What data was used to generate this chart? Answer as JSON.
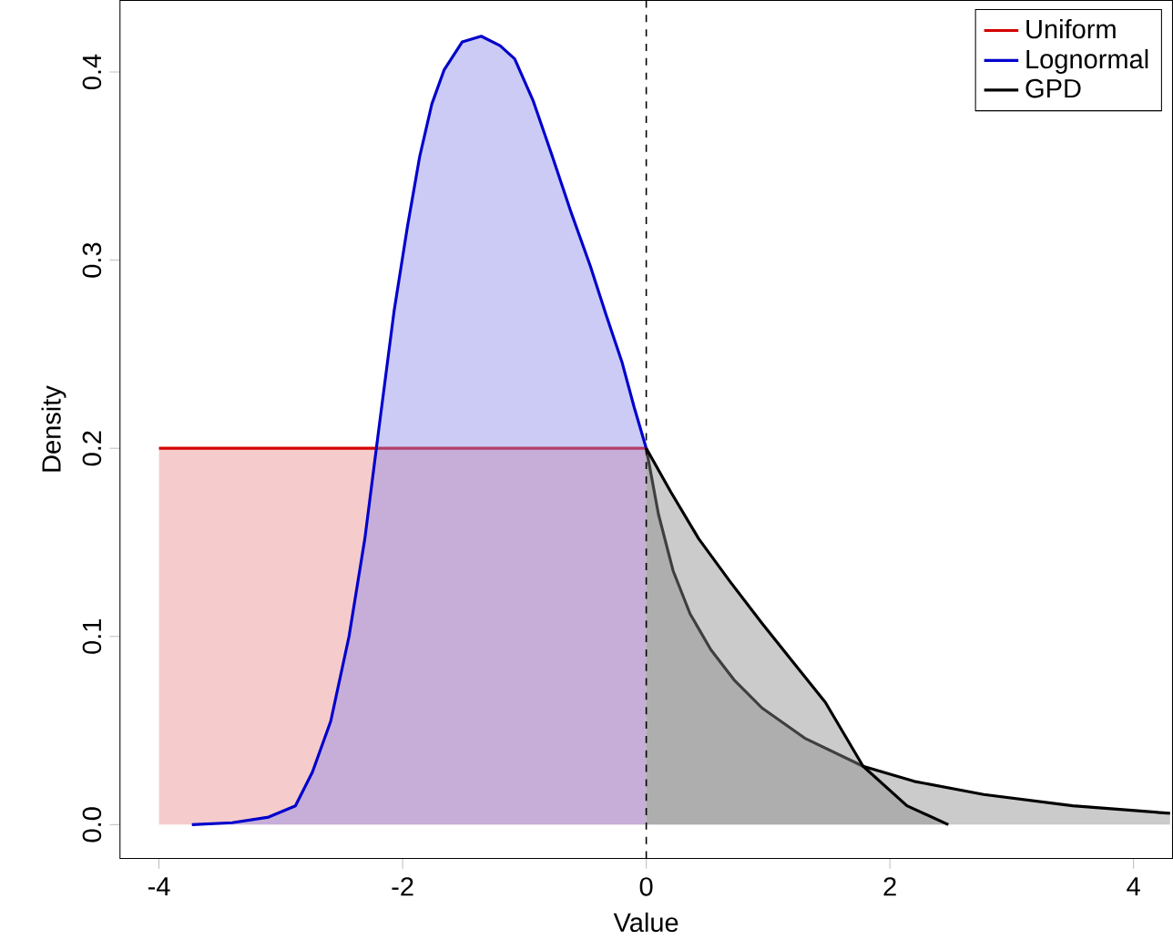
{
  "chart_data": {
    "type": "area",
    "xlabel": "Value",
    "ylabel": "Density",
    "xlim": [
      -4.32,
      4.32
    ],
    "ylim": [
      -0.018,
      0.438
    ],
    "xticks": [
      -4,
      -2,
      0,
      2,
      4
    ],
    "yticks": [
      {
        "value": 0,
        "label": "0.0"
      },
      {
        "value": 0.1,
        "label": "0.1"
      },
      {
        "value": 0.2,
        "label": "0.2"
      },
      {
        "value": 0.3,
        "label": "0.3"
      },
      {
        "value": 0.4,
        "label": "0.4"
      }
    ],
    "grid": false,
    "legend": "top right",
    "ref_lines": [
      {
        "axis": "x",
        "value": 0,
        "label": null,
        "color": "#000000",
        "line_style": "dashed"
      }
    ],
    "series": [
      {
        "name": "Uniform",
        "color": "#d40000",
        "x": [
          -4,
          0
        ],
        "values": [
          0.2,
          0.2
        ]
      },
      {
        "name": "Lognormal",
        "color": "#0000cc",
        "x": [
          -3.73,
          -3.4,
          -3.1,
          -2.88,
          -2.74,
          -2.59,
          -2.44,
          -2.31,
          -2.19,
          -2.07,
          -1.96,
          -1.86,
          -1.76,
          -1.66,
          -1.51,
          -1.355,
          -1.2,
          -1.08,
          -0.93,
          -0.77,
          -0.62,
          -0.46,
          -0.33,
          -0.2,
          -0.1,
          0
        ],
        "values": [
          0,
          0.001,
          0.004,
          0.01,
          0.028,
          0.055,
          0.1,
          0.152,
          0.213,
          0.273,
          0.318,
          0.355,
          0.383,
          0.401,
          0.416,
          0.419,
          0.414,
          0.407,
          0.385,
          0.355,
          0.326,
          0.297,
          0.271,
          0.246,
          0.222,
          0.2
        ]
      },
      {
        "name": "GPD",
        "color": "#000000",
        "x": [
          0,
          0.1,
          0.22,
          0.36,
          0.53,
          0.72,
          0.95,
          1.3,
          1.78,
          2.2,
          2.77,
          3.5,
          4.3
        ],
        "values": [
          0.2,
          0.165,
          0.135,
          0.112,
          0.093,
          0.077,
          0.062,
          0.046,
          0.031,
          0.023,
          0.016,
          0.01,
          0.006
        ]
      },
      {
        "color": "#000000",
        "x": [
          0,
          0.2,
          0.43,
          0.69,
          0.95,
          1.21,
          1.47,
          1.78,
          2.14,
          2.48
        ],
        "values": [
          0.2,
          0.177,
          0.152,
          0.129,
          0.107,
          0.086,
          0.065,
          0.031,
          0.01,
          0
        ]
      }
    ]
  }
}
